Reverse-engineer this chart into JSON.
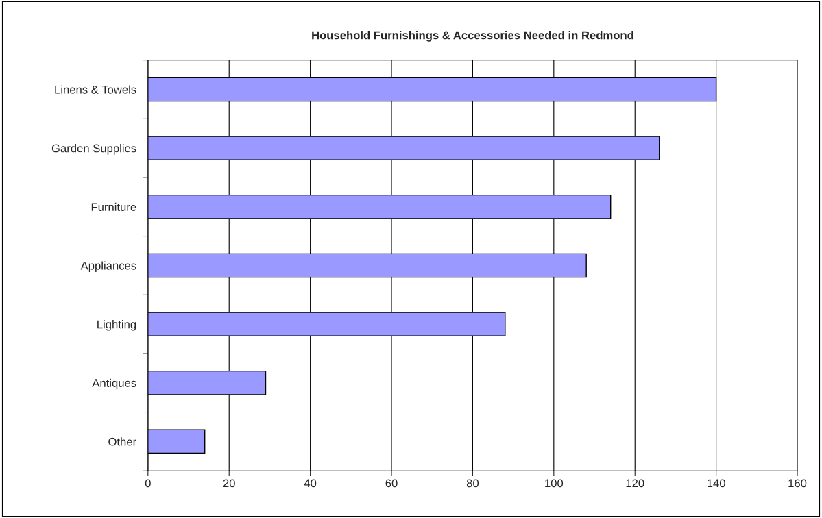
{
  "chart_data": {
    "type": "bar",
    "orientation": "horizontal",
    "title": "Household Furnishings & Accessories Needed in Redmond",
    "categories": [
      "Linens & Towels",
      "Garden Supplies",
      "Furniture",
      "Appliances",
      "Lighting",
      "Antiques",
      "Other"
    ],
    "values": [
      140,
      126,
      114,
      108,
      88,
      29,
      14
    ],
    "color": "#9999ff",
    "xlim": [
      0,
      160
    ],
    "xticks": [
      0,
      20,
      40,
      60,
      80,
      100,
      120,
      140,
      160
    ],
    "grid": "x",
    "legend": false
  }
}
